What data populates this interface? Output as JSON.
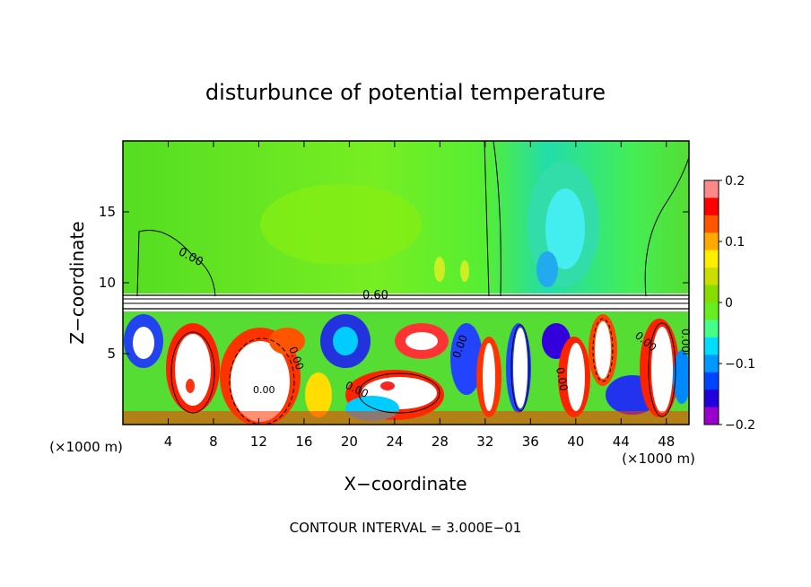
{
  "chart_data": {
    "type": "heatmap",
    "title": "disturbunce of potential temperature",
    "xlabel": "X−coordinate",
    "ylabel": "Z−coordinate",
    "x_unit_label": "(×1000 m)",
    "x_unit_label_right": "(×1000 m)",
    "xlim": [
      0,
      50
    ],
    "ylim": [
      0,
      20
    ],
    "x_ticks": [
      4,
      8,
      12,
      16,
      20,
      24,
      28,
      32,
      36,
      40,
      44,
      48
    ],
    "y_ticks": [
      5,
      10,
      15
    ],
    "colorbar": {
      "range": [
        -0.2,
        0.2
      ],
      "ticks": [
        -0.2,
        -0.1,
        0,
        0.1,
        0.2
      ],
      "tick_labels": [
        "−0.2",
        "−0.1",
        "0",
        "0.1",
        "0.2"
      ],
      "colors": [
        "#9900cc",
        "#2200dd",
        "#0044ff",
        "#0099ff",
        "#00ddff",
        "#44ff88",
        "#66ee22",
        "#88dd00",
        "#ccdd00",
        "#ffee00",
        "#ffaa00",
        "#ff5500",
        "#ff0000",
        "#ff8888"
      ]
    },
    "contour_labels": [
      "0.00",
      "0.60",
      "0.00",
      "0.00",
      "0.00",
      "0.00",
      "0.00",
      "0.00",
      "0.00"
    ],
    "annotation": "CONTOUR INTERVAL = 3.000E−01",
    "grid": false
  }
}
